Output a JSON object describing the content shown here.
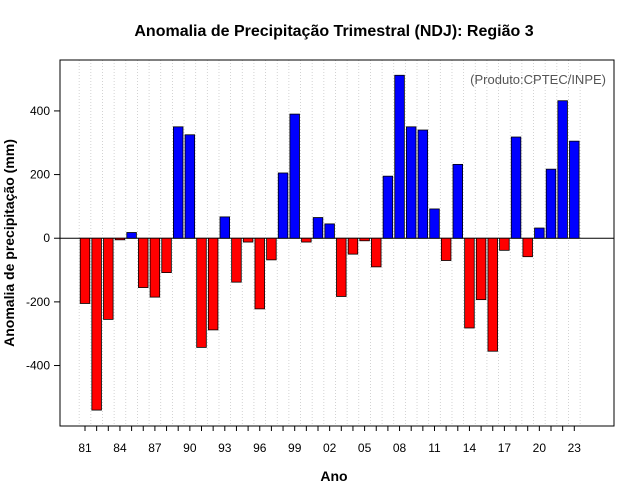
{
  "chart_data": {
    "type": "bar",
    "title": "Anomalia de Precipitação Trimestral (NDJ): Região 3",
    "xlabel": "Ano",
    "ylabel": "Anomalia de precipitação (mm)",
    "annotation": "(Produto:CPTEC/INPE)",
    "ylim": [
      -590,
      560
    ],
    "y_ticks": [
      -400,
      -200,
      0,
      200,
      400
    ],
    "x_tick_labels": [
      "81",
      "84",
      "87",
      "90",
      "93",
      "96",
      "99",
      "02",
      "05",
      "08",
      "11",
      "14",
      "17",
      "20",
      "23"
    ],
    "x_tick_index": [
      0,
      3,
      6,
      9,
      12,
      15,
      18,
      21,
      24,
      27,
      30,
      33,
      36,
      39,
      42
    ],
    "grid": true,
    "positive_color": "#0000ff",
    "negative_color": "#ff0000",
    "categories": [
      "1981",
      "1982",
      "1983",
      "1984",
      "1985",
      "1986",
      "1987",
      "1988",
      "1989",
      "1990",
      "1991",
      "1992",
      "1993",
      "1994",
      "1995",
      "1996",
      "1997",
      "1998",
      "1999",
      "2000",
      "2001",
      "2002",
      "2003",
      "2004",
      "2005",
      "2006",
      "2007",
      "2008",
      "2009",
      "2010",
      "2011",
      "2012",
      "2013",
      "2014",
      "2015",
      "2016",
      "2017",
      "2018",
      "2019",
      "2020",
      "2021",
      "2022",
      "2023"
    ],
    "values": [
      -205,
      -540,
      -255,
      -5,
      18,
      -155,
      -185,
      -108,
      350,
      325,
      -343,
      -288,
      67,
      -138,
      -12,
      -222,
      -68,
      205,
      390,
      -12,
      65,
      45,
      -183,
      -50,
      -8,
      -90,
      195,
      512,
      350,
      340,
      92,
      -70,
      232,
      -282,
      -193,
      -355,
      -38,
      318,
      -58,
      32,
      217,
      432,
      305
    ]
  }
}
